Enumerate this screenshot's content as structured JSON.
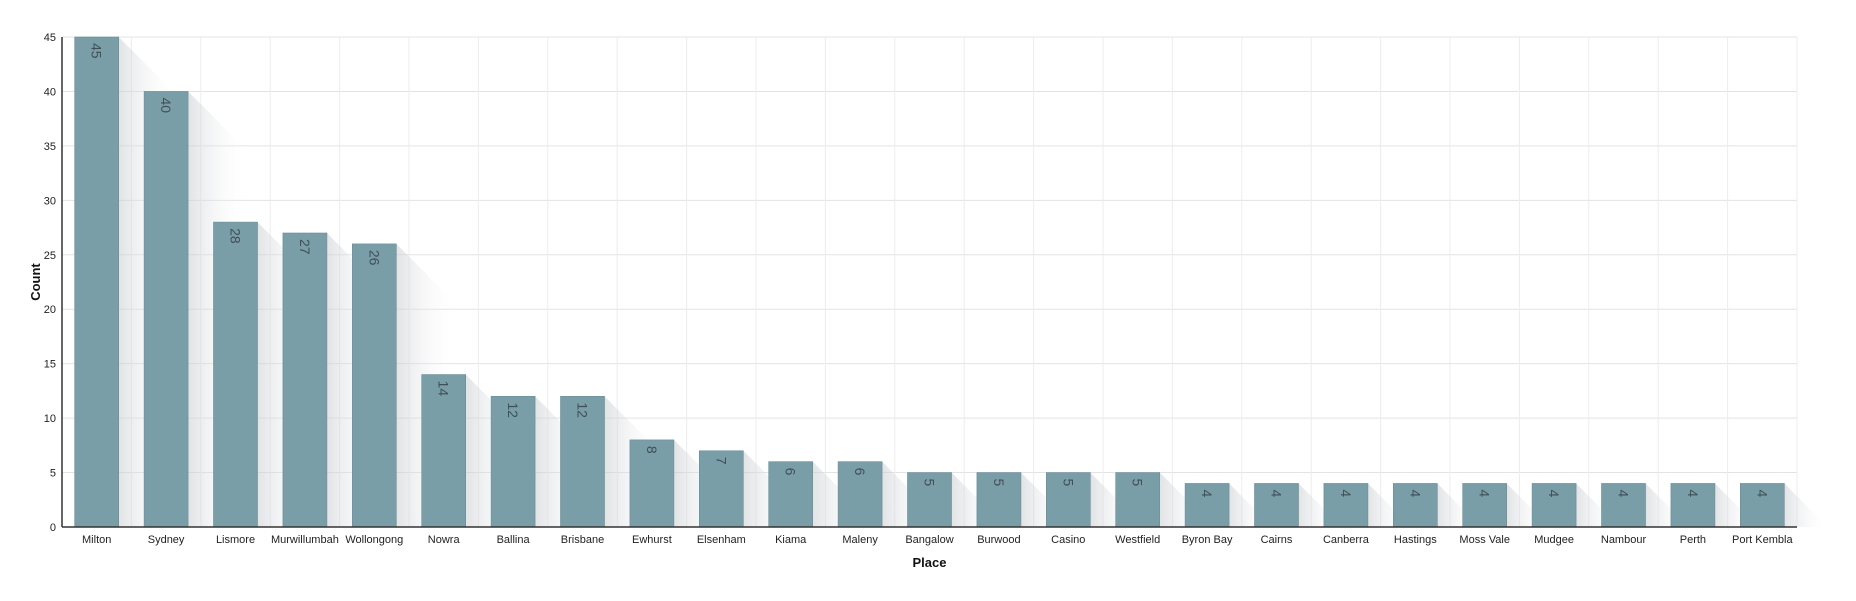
{
  "chart_data": {
    "type": "bar",
    "title": "",
    "xlabel": "Place",
    "ylabel": "Count",
    "ylim": [
      0,
      45
    ],
    "yticks": [
      0,
      5,
      10,
      15,
      20,
      25,
      30,
      35,
      40,
      45
    ],
    "grid": true,
    "bar_color": "#7a9ea8",
    "categories": [
      "Milton",
      "Sydney",
      "Lismore",
      "Murwillumbah",
      "Wollongong",
      "Nowra",
      "Ballina",
      "Brisbane",
      "Ewhurst",
      "Elsenham",
      "Kiama",
      "Maleny",
      "Bangalow",
      "Burwood",
      "Casino",
      "Westfield",
      "Byron Bay",
      "Cairns",
      "Canberra",
      "Hastings",
      "Moss Vale",
      "Mudgee",
      "Nambour",
      "Perth",
      "Port Kembla"
    ],
    "values": [
      45,
      40,
      28,
      27,
      26,
      14,
      12,
      12,
      8,
      7,
      6,
      6,
      5,
      5,
      5,
      5,
      4,
      4,
      4,
      4,
      4,
      4,
      4,
      4,
      4
    ]
  }
}
